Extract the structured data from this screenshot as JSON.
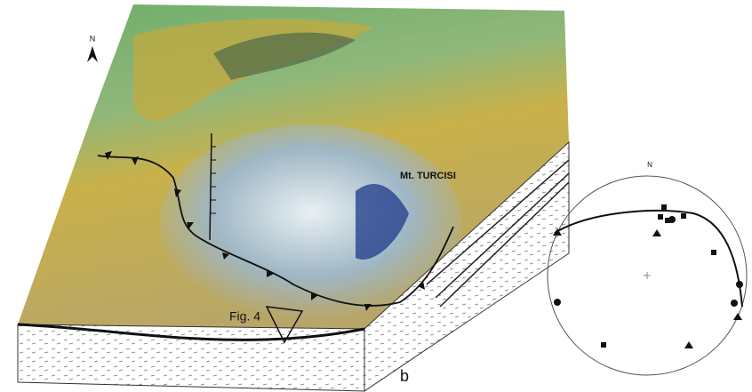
{
  "block_diagram": {
    "north_label": "N",
    "peak_label": "Mt. TURCISI",
    "figure_ref": "Fig. 4",
    "panel_label": "b"
  },
  "stereonet": {
    "north_label": "N"
  }
}
